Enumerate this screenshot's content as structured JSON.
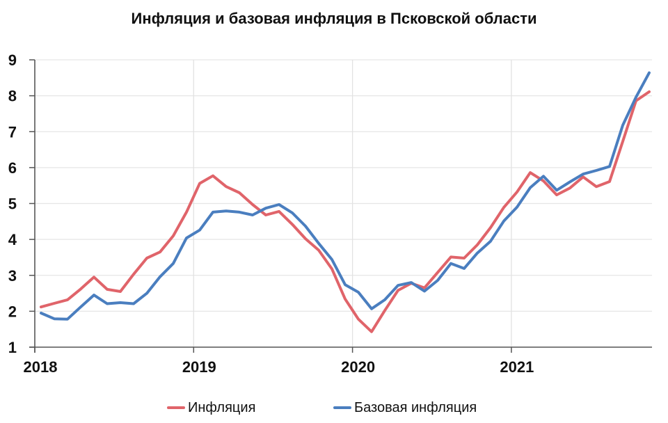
{
  "chart_data": {
    "type": "line",
    "title": "Инфляция и базовая инфляция в Псковской области",
    "xlabel": "",
    "ylabel": "",
    "ylim": [
      1,
      9
    ],
    "yticks": [
      1,
      2,
      3,
      4,
      5,
      6,
      7,
      8,
      9
    ],
    "xtick_labels": [
      "2018",
      "2019",
      "2020",
      "2021"
    ],
    "grid": true,
    "legend_position": "bottom",
    "x": [
      "2018-01",
      "2018-02",
      "2018-03",
      "2018-04",
      "2018-05",
      "2018-06",
      "2018-07",
      "2018-08",
      "2018-09",
      "2018-10",
      "2018-11",
      "2018-12",
      "2019-01",
      "2019-02",
      "2019-03",
      "2019-04",
      "2019-05",
      "2019-06",
      "2019-07",
      "2019-08",
      "2019-09",
      "2019-10",
      "2019-11",
      "2019-12",
      "2020-01",
      "2020-02",
      "2020-03",
      "2020-04",
      "2020-05",
      "2020-06",
      "2020-07",
      "2020-08",
      "2020-09",
      "2020-10",
      "2020-11",
      "2020-12",
      "2021-01",
      "2021-02",
      "2021-03",
      "2021-04",
      "2021-05",
      "2021-06",
      "2021-07",
      "2021-08",
      "2021-09",
      "2021-10",
      "2021-11"
    ],
    "series": [
      {
        "name": "Инфляция",
        "color": "#e0646a",
        "values": [
          2.12,
          2.22,
          2.32,
          2.62,
          2.95,
          2.61,
          2.55,
          3.03,
          3.48,
          3.65,
          4.1,
          4.76,
          5.56,
          5.77,
          5.47,
          5.3,
          4.97,
          4.68,
          4.78,
          4.42,
          4.02,
          3.7,
          3.18,
          2.34,
          1.78,
          1.43,
          2.02,
          2.58,
          2.78,
          2.65,
          3.08,
          3.51,
          3.48,
          3.85,
          4.33,
          4.89,
          5.32,
          5.86,
          5.63,
          5.24,
          5.43,
          5.74,
          5.47,
          5.61,
          6.73,
          7.86,
          8.11
        ]
      },
      {
        "name": "Базовая инфляция",
        "color": "#4a7ebf",
        "values": [
          1.95,
          1.79,
          1.78,
          2.12,
          2.45,
          2.21,
          2.24,
          2.21,
          2.5,
          2.96,
          3.33,
          4.04,
          4.26,
          4.76,
          4.79,
          4.76,
          4.68,
          4.87,
          4.97,
          4.74,
          4.37,
          3.89,
          3.44,
          2.74,
          2.53,
          2.07,
          2.32,
          2.72,
          2.8,
          2.56,
          2.86,
          3.33,
          3.19,
          3.62,
          3.95,
          4.51,
          4.9,
          5.44,
          5.76,
          5.37,
          5.6,
          5.82,
          5.92,
          6.03,
          7.18,
          7.96,
          8.64
        ]
      }
    ]
  },
  "legend": {
    "items": [
      {
        "label": "Инфляция",
        "color": "#e0646a"
      },
      {
        "label": "Базовая инфляция",
        "color": "#4a7ebf"
      }
    ]
  }
}
